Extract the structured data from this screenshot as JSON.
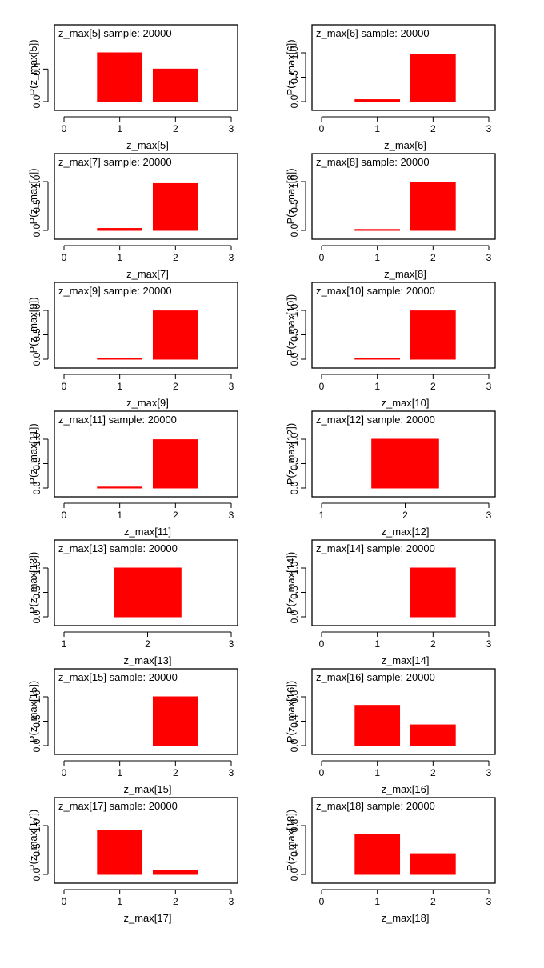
{
  "chart_data": [
    {
      "type": "bar",
      "title": "z_max[5] sample: 20000",
      "xlabel": "z_max[5]",
      "ylabel": "P(z_max[5])",
      "categories": [
        1,
        2
      ],
      "values": [
        0.6,
        0.4
      ],
      "xlim": [
        0,
        3
      ],
      "xticks": [
        0,
        1,
        2,
        3
      ],
      "ylim": [
        0,
        0.6
      ],
      "yticks": [
        "0.0",
        "0.4"
      ],
      "yticks_values": [
        0,
        0.4
      ],
      "color": "#ff0000"
    },
    {
      "type": "bar",
      "title": "z_max[6] sample: 20000",
      "xlabel": "z_max[6]",
      "ylabel": "P(z_max[6])",
      "categories": [
        1,
        2
      ],
      "values": [
        0.04,
        0.96
      ],
      "xlim": [
        0,
        3
      ],
      "xticks": [
        0,
        1,
        2,
        3
      ],
      "ylim": [
        0,
        1.0
      ],
      "yticks": [
        "0.0",
        "0.5",
        "1.0"
      ],
      "yticks_values": [
        0,
        0.5,
        1.0
      ],
      "color": "#ff0000"
    },
    {
      "type": "bar",
      "title": "z_max[7] sample: 20000",
      "xlabel": "z_max[7]",
      "ylabel": "P(z_max[7])",
      "categories": [
        1,
        2
      ],
      "values": [
        0.04,
        0.96
      ],
      "xlim": [
        0,
        3
      ],
      "xticks": [
        0,
        1,
        2,
        3
      ],
      "ylim": [
        0,
        1.0
      ],
      "yticks": [
        "0.0",
        "0.5",
        "1.0"
      ],
      "yticks_values": [
        0,
        0.5,
        1.0
      ],
      "color": "#ff0000"
    },
    {
      "type": "bar",
      "title": "z_max[8] sample: 20000",
      "xlabel": "z_max[8]",
      "ylabel": "P(z_max[8])",
      "categories": [
        1,
        2
      ],
      "values": [
        0.01,
        0.99
      ],
      "xlim": [
        0,
        3
      ],
      "xticks": [
        0,
        1,
        2,
        3
      ],
      "ylim": [
        0,
        1.0
      ],
      "yticks": [
        "0.0",
        "0.5",
        "1.0"
      ],
      "yticks_values": [
        0,
        0.5,
        1.0
      ],
      "color": "#ff0000"
    },
    {
      "type": "bar",
      "title": "z_max[9] sample: 20000",
      "xlabel": "z_max[9]",
      "ylabel": "P(z_max[9])",
      "categories": [
        1,
        2
      ],
      "values": [
        0.01,
        0.99
      ],
      "xlim": [
        0,
        3
      ],
      "xticks": [
        0,
        1,
        2,
        3
      ],
      "ylim": [
        0,
        1.0
      ],
      "yticks": [
        "0.0",
        "0.5",
        "1.0"
      ],
      "yticks_values": [
        0,
        0.5,
        1.0
      ],
      "color": "#ff0000"
    },
    {
      "type": "bar",
      "title": "z_max[10] sample: 20000",
      "xlabel": "z_max[10]",
      "ylabel": "P(z_max[10])",
      "categories": [
        1,
        2
      ],
      "values": [
        0.01,
        0.99
      ],
      "xlim": [
        0,
        3
      ],
      "xticks": [
        0,
        1,
        2,
        3
      ],
      "ylim": [
        0,
        1.0
      ],
      "yticks": [
        "0.0",
        "0.5",
        "1.0"
      ],
      "yticks_values": [
        0,
        0.5,
        1.0
      ],
      "color": "#ff0000"
    },
    {
      "type": "bar",
      "title": "z_max[11] sample: 20000",
      "xlabel": "z_max[11]",
      "ylabel": "P(z_max[11])",
      "categories": [
        1,
        2
      ],
      "values": [
        0.01,
        0.99
      ],
      "xlim": [
        0,
        3
      ],
      "xticks": [
        0,
        1,
        2,
        3
      ],
      "ylim": [
        0,
        1.0
      ],
      "yticks": [
        "0.0",
        "0.5",
        "1.0"
      ],
      "yticks_values": [
        0,
        0.5,
        1.0
      ],
      "color": "#ff0000"
    },
    {
      "type": "bar",
      "title": "z_max[12] sample: 20000",
      "xlabel": "z_max[12]",
      "ylabel": "P(z_max[12])",
      "categories": [
        2
      ],
      "values": [
        1.0
      ],
      "xlim": [
        1,
        3
      ],
      "xticks": [
        1,
        2,
        3
      ],
      "ylim": [
        0,
        1.0
      ],
      "yticks": [
        "0.0",
        "0.5",
        "1.0"
      ],
      "yticks_values": [
        0,
        0.5,
        1.0
      ],
      "color": "#ff0000"
    },
    {
      "type": "bar",
      "title": "z_max[13] sample: 20000",
      "xlabel": "z_max[13]",
      "ylabel": "P(z_max[13])",
      "categories": [
        2
      ],
      "values": [
        1.0
      ],
      "xlim": [
        1,
        3
      ],
      "xticks": [
        1,
        2,
        3
      ],
      "ylim": [
        0,
        1.0
      ],
      "yticks": [
        "0.0",
        "0.5",
        "1.0"
      ],
      "yticks_values": [
        0,
        0.5,
        1.0
      ],
      "color": "#ff0000"
    },
    {
      "type": "bar",
      "title": "z_max[14] sample: 20000",
      "xlabel": "z_max[14]",
      "ylabel": "P(z_max[14])",
      "categories": [
        2
      ],
      "values": [
        1.0
      ],
      "xlim": [
        0,
        3
      ],
      "xticks": [
        0,
        1,
        2,
        3
      ],
      "ylim": [
        0,
        1.0
      ],
      "yticks": [
        "0.0",
        "0.5",
        "1.0"
      ],
      "yticks_values": [
        0,
        0.5,
        1.0
      ],
      "color": "#ff0000"
    },
    {
      "type": "bar",
      "title": "z_max[15] sample: 20000",
      "xlabel": "z_max[15]",
      "ylabel": "P(z_max[15])",
      "categories": [
        2
      ],
      "values": [
        1.0
      ],
      "xlim": [
        0,
        3
      ],
      "xticks": [
        0,
        1,
        2,
        3
      ],
      "ylim": [
        0,
        1.0
      ],
      "yticks": [
        "0.0",
        "0.5",
        "1.0"
      ],
      "yticks_values": [
        0,
        0.5,
        1.0
      ],
      "color": "#ff0000"
    },
    {
      "type": "bar",
      "title": "z_max[16] sample: 20000",
      "xlabel": "z_max[16]",
      "ylabel": "P(z_max[16])",
      "categories": [
        1,
        2
      ],
      "values": [
        0.66,
        0.34
      ],
      "xlim": [
        0,
        3
      ],
      "xticks": [
        0,
        1,
        2,
        3
      ],
      "ylim": [
        0,
        0.8
      ],
      "yticks": [
        "0.0",
        "0.4",
        "0.8"
      ],
      "yticks_values": [
        0,
        0.4,
        0.8
      ],
      "color": "#ff0000"
    },
    {
      "type": "bar",
      "title": "z_max[17] sample: 20000",
      "xlabel": "z_max[17]",
      "ylabel": "P(z_max[17])",
      "categories": [
        1,
        2
      ],
      "values": [
        0.91,
        0.09
      ],
      "xlim": [
        0,
        3
      ],
      "xticks": [
        0,
        1,
        2,
        3
      ],
      "ylim": [
        0,
        1.0
      ],
      "yticks": [
        "0.0",
        "0.5",
        "1.0"
      ],
      "yticks_values": [
        0,
        0.5,
        1.0
      ],
      "color": "#ff0000"
    },
    {
      "type": "bar",
      "title": "z_max[18] sample: 20000",
      "xlabel": "z_max[18]",
      "ylabel": "P(z_max[18])",
      "categories": [
        1,
        2
      ],
      "values": [
        0.66,
        0.34
      ],
      "xlim": [
        0,
        3
      ],
      "xticks": [
        0,
        1,
        2,
        3
      ],
      "ylim": [
        0,
        0.8
      ],
      "yticks": [
        "0.0",
        "0.4",
        "0.8"
      ],
      "yticks_values": [
        0,
        0.4,
        0.8
      ],
      "color": "#ff0000"
    }
  ]
}
